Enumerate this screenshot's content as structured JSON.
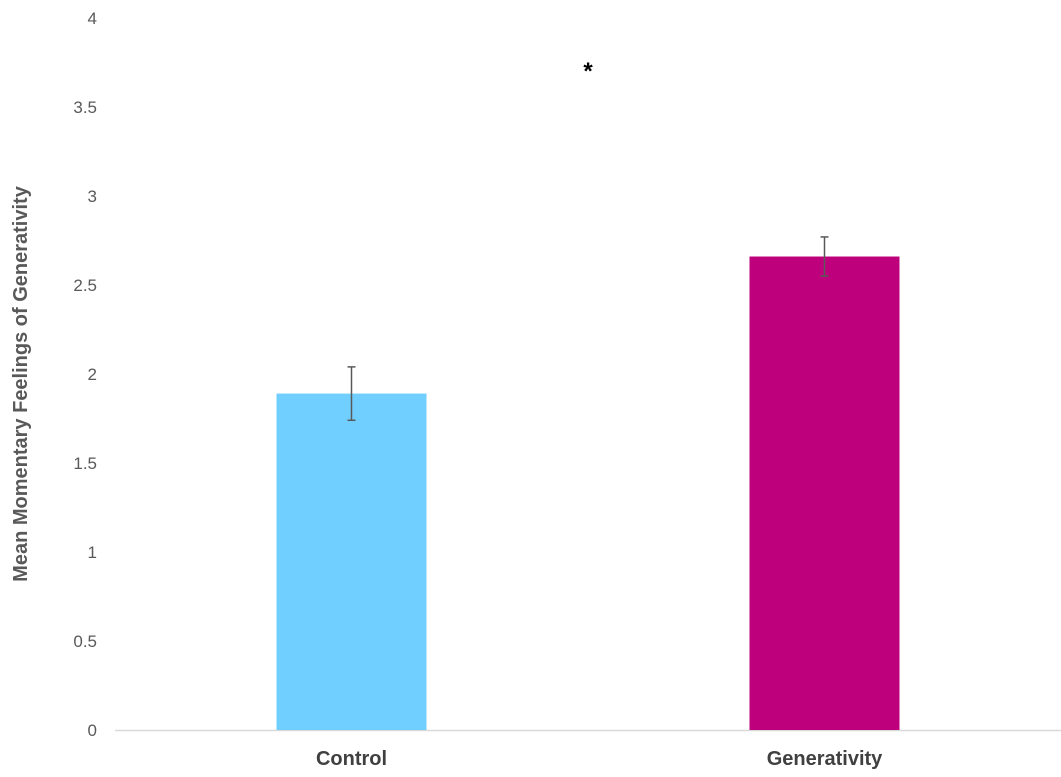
{
  "chart_data": {
    "type": "bar",
    "title": "",
    "xlabel": "",
    "ylabel": "Mean Momentary Feelings of Generativity",
    "ylim": [
      0,
      4
    ],
    "yticks": [
      "0",
      "0.5",
      "1",
      "1.5",
      "2",
      "2.5",
      "3",
      "3.5",
      "4"
    ],
    "categories": [
      "Control",
      "Generativity"
    ],
    "values": [
      1.89,
      2.66
    ],
    "error_bars": [
      {
        "low": 1.74,
        "high": 2.04
      },
      {
        "low": 2.55,
        "high": 2.77
      }
    ],
    "bar_colors": [
      "#70CFFF",
      "#BF007D"
    ],
    "error_bar_color": "#595959",
    "axis_color": "#D9D9D9",
    "grid": false,
    "legend": "none",
    "annotation": "*"
  }
}
